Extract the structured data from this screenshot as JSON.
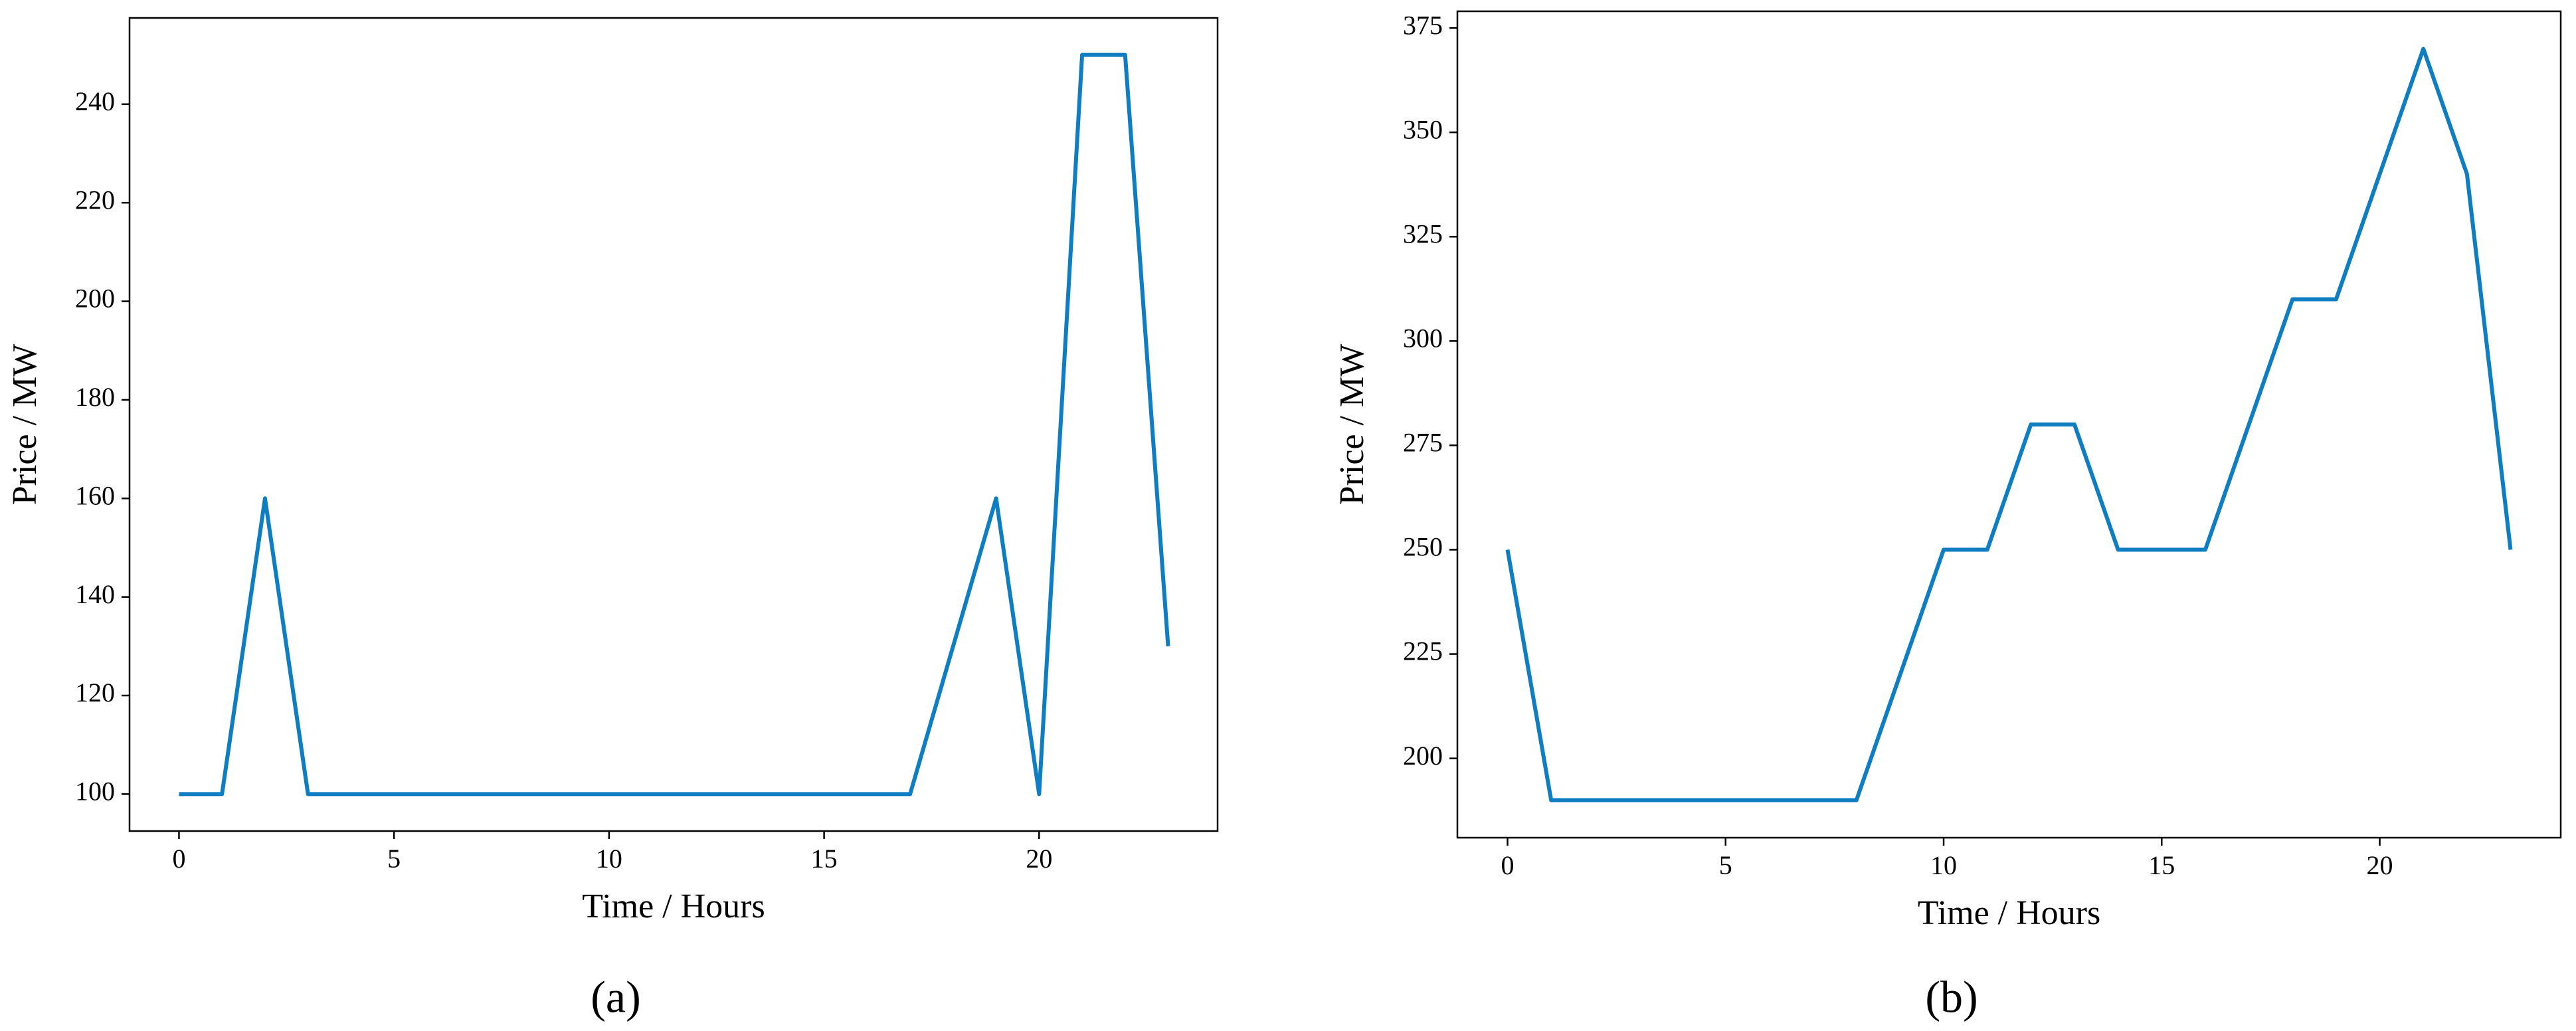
{
  "chart_data": [
    {
      "type": "line",
      "caption": "(a)",
      "x_label": "Time / Hours",
      "y_label": "Price / MW",
      "x": [
        0,
        1,
        2,
        3,
        4,
        5,
        6,
        7,
        8,
        9,
        10,
        11,
        12,
        13,
        14,
        15,
        16,
        17,
        18,
        19,
        20,
        21,
        22,
        23
      ],
      "series": [
        {
          "color": "#0f7dc2",
          "values": [
            100,
            100,
            160,
            100,
            100,
            100,
            100,
            100,
            100,
            100,
            100,
            100,
            100,
            100,
            100,
            100,
            100,
            100,
            130,
            160,
            100,
            250,
            250,
            130
          ]
        }
      ],
      "xlim": [
        -1.15,
        24.15
      ],
      "xticks": [
        0,
        5,
        10,
        15,
        20
      ],
      "ylim": [
        92.5,
        257.5
      ],
      "yticks": [
        100,
        120,
        140,
        160,
        180,
        200,
        220,
        240
      ]
    },
    {
      "type": "line",
      "caption": "(b)",
      "x_label": "Time / Hours",
      "y_label": "Price / MW",
      "x": [
        0,
        1,
        2,
        3,
        4,
        5,
        6,
        7,
        8,
        9,
        10,
        11,
        12,
        13,
        14,
        15,
        16,
        17,
        18,
        19,
        20,
        21,
        22,
        23
      ],
      "series": [
        {
          "color": "#0f7dc2",
          "values": [
            250,
            190,
            190,
            190,
            190,
            190,
            190,
            190,
            190,
            220,
            250,
            250,
            280,
            280,
            250,
            250,
            250,
            280,
            310,
            310,
            340,
            370,
            340,
            250
          ]
        }
      ],
      "xlim": [
        -1.15,
        24.15
      ],
      "xticks": [
        0,
        5,
        10,
        15,
        20
      ],
      "ylim": [
        181,
        379
      ],
      "yticks": [
        200,
        225,
        250,
        275,
        300,
        325,
        350,
        375
      ]
    }
  ]
}
